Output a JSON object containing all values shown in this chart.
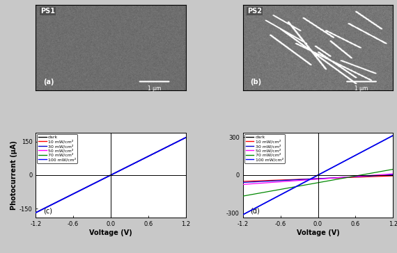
{
  "panel_a_label": "PS1",
  "panel_b_label": "PS2",
  "panel_a_sublabel": "(a)",
  "panel_b_sublabel": "(b)",
  "panel_c_sublabel": "(c)",
  "panel_d_sublabel": "(d)",
  "scale_bar": "1 μm",
  "xlabel": "Voltage (V)",
  "ylabel": "Photocurrent (μA)",
  "xlim": [
    -1.2,
    1.2
  ],
  "c_ylim": [
    -190,
    190
  ],
  "d_ylim": [
    -335,
    335
  ],
  "c_yticks": [
    -150,
    0,
    150
  ],
  "d_yticks": [
    -300,
    0,
    300
  ],
  "xticks": [
    -1.2,
    -0.6,
    0.0,
    0.6,
    1.2
  ],
  "legend_labels": [
    "dark",
    "10 mW/cm²",
    "30 mW/cm²",
    "50 mW/cm²",
    "70 mW/cm²",
    "100 mW/cm²"
  ],
  "legend_colors": [
    "#000000",
    "#ff0000",
    "#0000cc",
    "#ff00ff",
    "#008800",
    "#0000ff"
  ],
  "c_slopes": [
    140,
    140,
    140,
    140,
    140,
    140
  ],
  "d_slopes": [
    260,
    18,
    25,
    35,
    88,
    260
  ],
  "d_offsets": [
    0,
    -28,
    -28,
    -32,
    -60,
    0
  ],
  "background_color": "#ffffff",
  "outer_bg": "#c8c8c8",
  "sem_gray_ps1": 0.48,
  "sem_noise_std_ps1": 0.025,
  "sem_gray_ps2": 0.5,
  "sem_noise_std_ps2": 0.03,
  "nw_positions": [
    [
      0.25,
      0.75,
      0.08,
      0.72,
      3
    ],
    [
      0.35,
      0.85,
      0.12,
      0.55,
      3
    ],
    [
      0.3,
      0.55,
      0.25,
      0.8,
      3
    ],
    [
      0.18,
      0.45,
      0.3,
      0.65,
      3
    ],
    [
      0.15,
      0.42,
      0.55,
      0.82,
      3
    ],
    [
      0.5,
      0.75,
      0.15,
      0.45,
      3
    ],
    [
      0.55,
      0.78,
      0.5,
      0.7,
      3
    ],
    [
      0.65,
      0.88,
      0.2,
      0.35,
      3
    ],
    [
      0.7,
      0.95,
      0.55,
      0.78,
      3
    ],
    [
      0.75,
      0.92,
      0.72,
      0.92,
      3
    ],
    [
      0.4,
      0.6,
      0.62,
      0.85,
      3
    ],
    [
      0.2,
      0.38,
      0.7,
      0.88,
      3
    ],
    [
      0.58,
      0.72,
      0.38,
      0.58,
      2
    ],
    [
      0.48,
      0.58,
      0.4,
      0.52,
      2
    ]
  ]
}
